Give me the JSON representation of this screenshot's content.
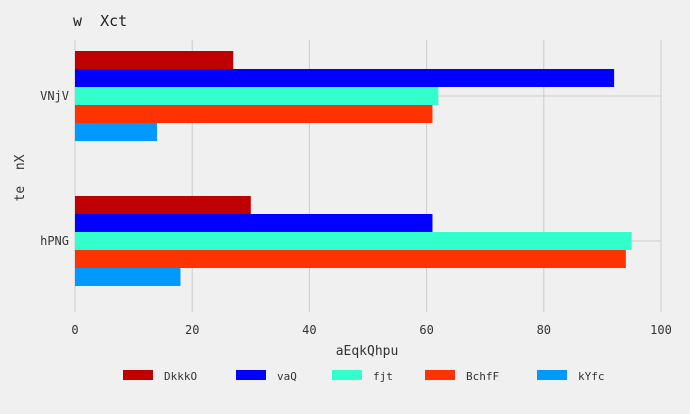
{
  "chart_data": {
    "type": "bar",
    "orientation": "horizontal",
    "title": "w  Xct",
    "xlabel": "aEqkQhpu",
    "ylabel": "te  nX",
    "xlim": [
      0,
      100
    ],
    "xticks": [
      "0",
      "20",
      "40",
      "60",
      "80",
      "100"
    ],
    "grid": true,
    "legend_position": "bottom",
    "categories": [
      "VNjV",
      "hPNG"
    ],
    "series": [
      {
        "name": "DkkkO",
        "color": "#c00000",
        "values": [
          27,
          30
        ]
      },
      {
        "name": "vaQ",
        "color": "#0000ff",
        "values": [
          92,
          61
        ]
      },
      {
        "name": "fjt",
        "color": "#33ffcc",
        "values": [
          62,
          95
        ]
      },
      {
        "name": "BchfF",
        "color": "#ff3300",
        "values": [
          61,
          94
        ]
      },
      {
        "name": "kYfc",
        "color": "#0099ff",
        "values": [
          14,
          18
        ]
      }
    ]
  }
}
